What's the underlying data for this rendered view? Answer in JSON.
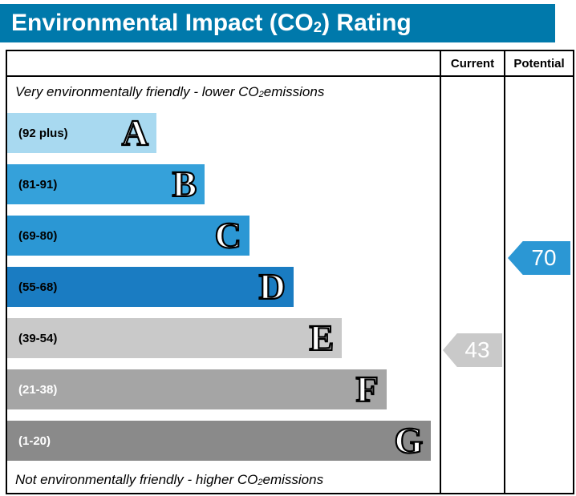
{
  "title": {
    "prefix": "Environmental Impact (CO",
    "sub": "2",
    "suffix": ") Rating"
  },
  "header": {
    "current": "Current",
    "potential": "Potential"
  },
  "notes": {
    "top": {
      "prefix": "Very environmentally friendly - lower CO",
      "sub": "2",
      "suffix": " emissions"
    },
    "bottom": {
      "prefix": "Not environmentally friendly - higher CO",
      "sub": "2",
      "suffix": " emissions"
    }
  },
  "chart_data": {
    "type": "bar",
    "title": "Environmental Impact (CO2) Rating",
    "orientation": "horizontal",
    "columns": [
      "Current",
      "Potential"
    ],
    "bands": [
      {
        "letter": "A",
        "range": "(92 plus)",
        "color": "#a8d9f0",
        "text_color": "#000000",
        "width_pct": 34.5
      },
      {
        "letter": "B",
        "range": "(81-91)",
        "color": "#35a1da",
        "text_color": "#000000",
        "width_pct": 45.7
      },
      {
        "letter": "C",
        "range": "(69-80)",
        "color": "#2b97d4",
        "text_color": "#000000",
        "width_pct": 56.0
      },
      {
        "letter": "D",
        "range": "(55-68)",
        "color": "#1a7cc2",
        "text_color": "#000000",
        "width_pct": 66.2
      },
      {
        "letter": "E",
        "range": "(39-54)",
        "color": "#c9c9c9",
        "text_color": "#000000",
        "width_pct": 77.4
      },
      {
        "letter": "F",
        "range": "(21-38)",
        "color": "#a5a5a5",
        "text_color": "#ffffff",
        "width_pct": 87.7
      },
      {
        "letter": "G",
        "range": "(1-20)",
        "color": "#8a8a8a",
        "text_color": "#ffffff",
        "width_pct": 98.0
      }
    ],
    "current": {
      "value": 43,
      "color": "#c9c9c9",
      "band": "E"
    },
    "potential": {
      "value": 70,
      "color": "#2b97d4",
      "band": "C"
    }
  }
}
